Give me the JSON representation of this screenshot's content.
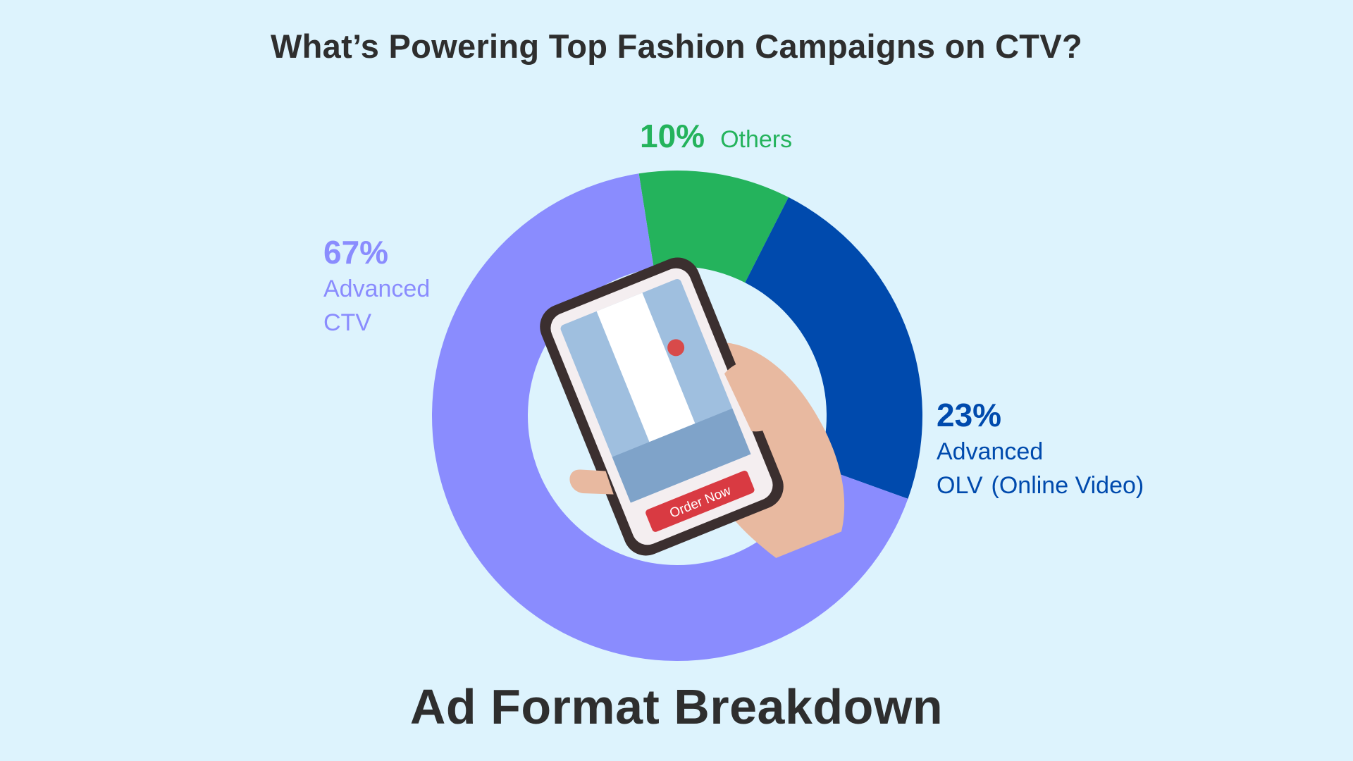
{
  "title": "What’s Powering Top Fashion Campaigns on CTV?",
  "subtitle": "Ad Format Breakdown",
  "colors": {
    "background": "#ddf3fd",
    "advanced_ctv": "#8a8cfe",
    "advanced_olv": "#004aad",
    "others": "#24b35c"
  },
  "center_image": {
    "description_icon": "hand-holding-phone",
    "button_label": "Order Now"
  },
  "labels": {
    "others": {
      "pct": "10%",
      "name": "Others"
    },
    "advanced_ctv": {
      "pct": "67%",
      "line1": "Advanced",
      "line2": "CTV"
    },
    "advanced_olv": {
      "pct": "23%",
      "line1": "Advanced",
      "line2a": "OLV",
      "line2b": "(Online Video)"
    }
  },
  "chart_data": {
    "type": "pie",
    "donut": true,
    "title": "What’s Powering Top Fashion Campaigns on CTV?",
    "subtitle": "Ad Format Breakdown",
    "categories": [
      "Others",
      "Advanced OLV (Online Video)",
      "Advanced CTV"
    ],
    "values": [
      10,
      23,
      67
    ],
    "unit": "%",
    "colors": [
      "#24b35c",
      "#004aad",
      "#8a8cfe"
    ],
    "legend": "none"
  }
}
